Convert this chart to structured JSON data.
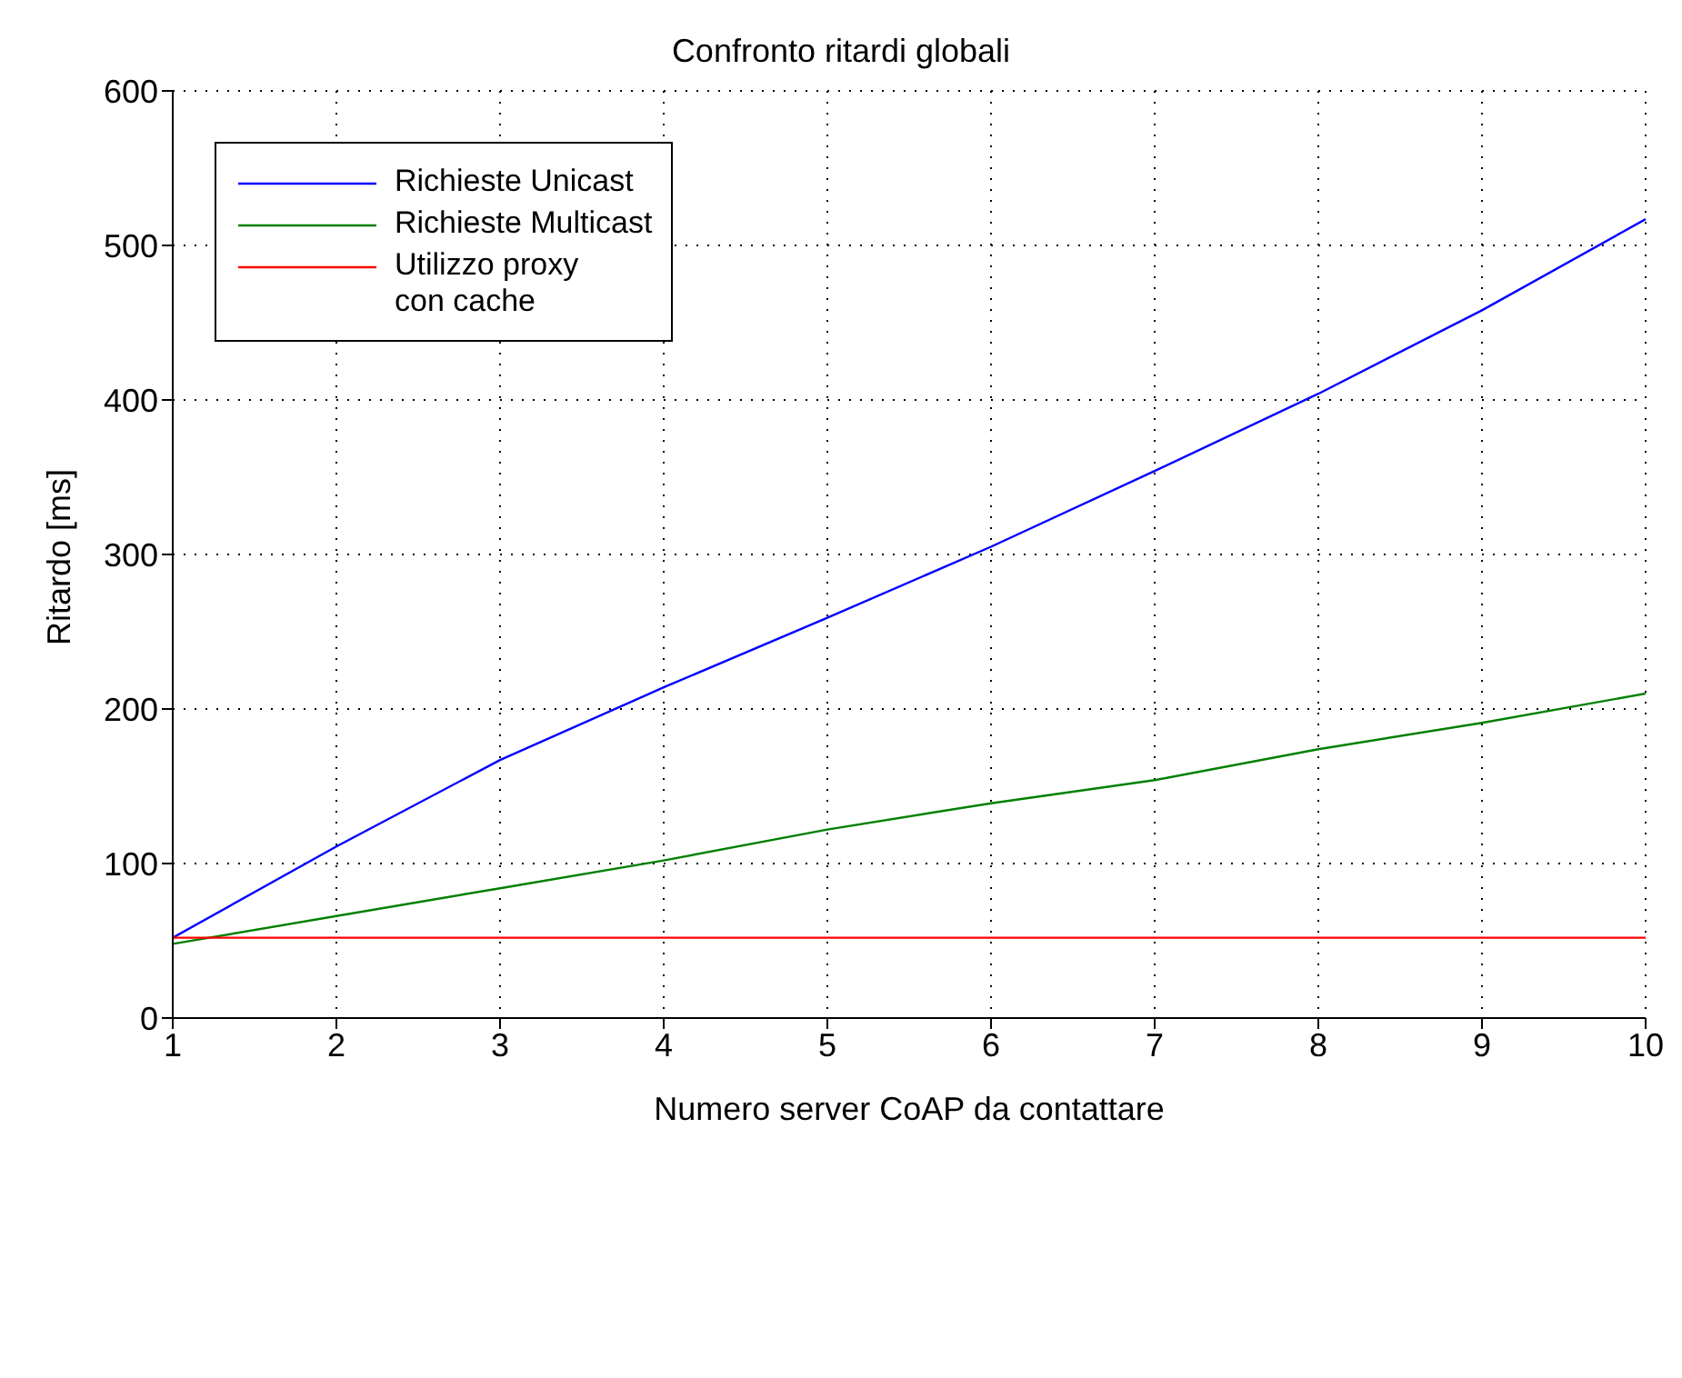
{
  "chart_data": {
    "type": "line",
    "title": "Confronto ritardi globali",
    "xlabel": "Numero server CoAP da contattare",
    "ylabel": "Ritardo [ms]",
    "x": [
      1,
      2,
      3,
      4,
      5,
      6,
      7,
      8,
      9,
      10
    ],
    "series": [
      {
        "name": "Richieste Unicast",
        "color": "#0000ff",
        "values": [
          52,
          111,
          167,
          214,
          259,
          305,
          354,
          404,
          458,
          517
        ]
      },
      {
        "name": "Richieste Multicast",
        "color": "#008000",
        "values": [
          48,
          66,
          84,
          102,
          122,
          139,
          154,
          174,
          191,
          210
        ]
      },
      {
        "name": "Utilizzo proxy\ncon cache",
        "color": "#ff0000",
        "values": [
          52,
          52,
          52,
          52,
          52,
          52,
          52,
          52,
          52,
          52
        ]
      }
    ],
    "xlim": [
      1,
      10
    ],
    "xticks": [
      1,
      2,
      3,
      4,
      5,
      6,
      7,
      8,
      9,
      10
    ],
    "ylim": [
      0,
      600
    ],
    "yticks": [
      0,
      100,
      200,
      300,
      400,
      500,
      600
    ],
    "grid": true,
    "legend": "top left",
    "marker": "none",
    "line_style": "solid"
  }
}
